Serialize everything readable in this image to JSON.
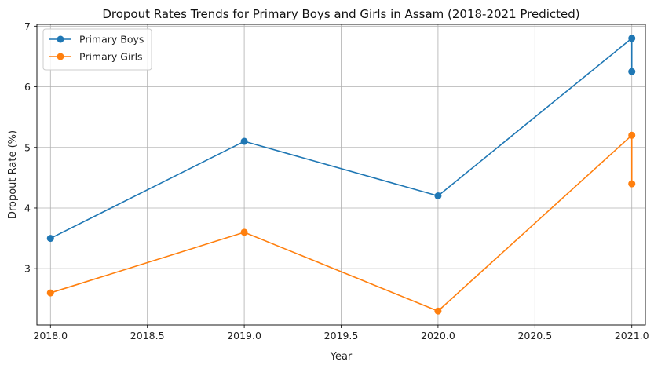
{
  "chart_data": {
    "type": "line",
    "title": "Dropout Rates Trends for Primary Boys and Girls in Assam (2018-2021 Predicted)",
    "xlabel": "Year",
    "ylabel": "Dropout Rate (%)",
    "xlim": [
      2017.93,
      2021.07
    ],
    "ylim": [
      2.07,
      7.03
    ],
    "x_ticks": [
      2018.0,
      2018.5,
      2019.0,
      2019.5,
      2020.0,
      2020.5,
      2021.0
    ],
    "x_tick_labels": [
      "2018.0",
      "2018.5",
      "2019.0",
      "2019.5",
      "2020.0",
      "2020.5",
      "2021.0"
    ],
    "y_ticks": [
      3,
      4,
      5,
      6,
      7
    ],
    "y_tick_labels": [
      "3",
      "4",
      "5",
      "6",
      "7"
    ],
    "grid": true,
    "legend_position": "top-left",
    "series": [
      {
        "name": "Primary Boys",
        "color": "#1f77b4",
        "points": [
          [
            2018,
            3.5
          ],
          [
            2019,
            5.1
          ],
          [
            2020,
            4.2
          ],
          [
            2021,
            6.8
          ],
          [
            2021,
            6.25
          ]
        ]
      },
      {
        "name": "Primary Girls",
        "color": "#ff7f0e",
        "points": [
          [
            2018,
            2.6
          ],
          [
            2019,
            3.6
          ],
          [
            2020,
            2.3
          ],
          [
            2021,
            5.2
          ],
          [
            2021,
            4.4
          ]
        ]
      }
    ]
  }
}
